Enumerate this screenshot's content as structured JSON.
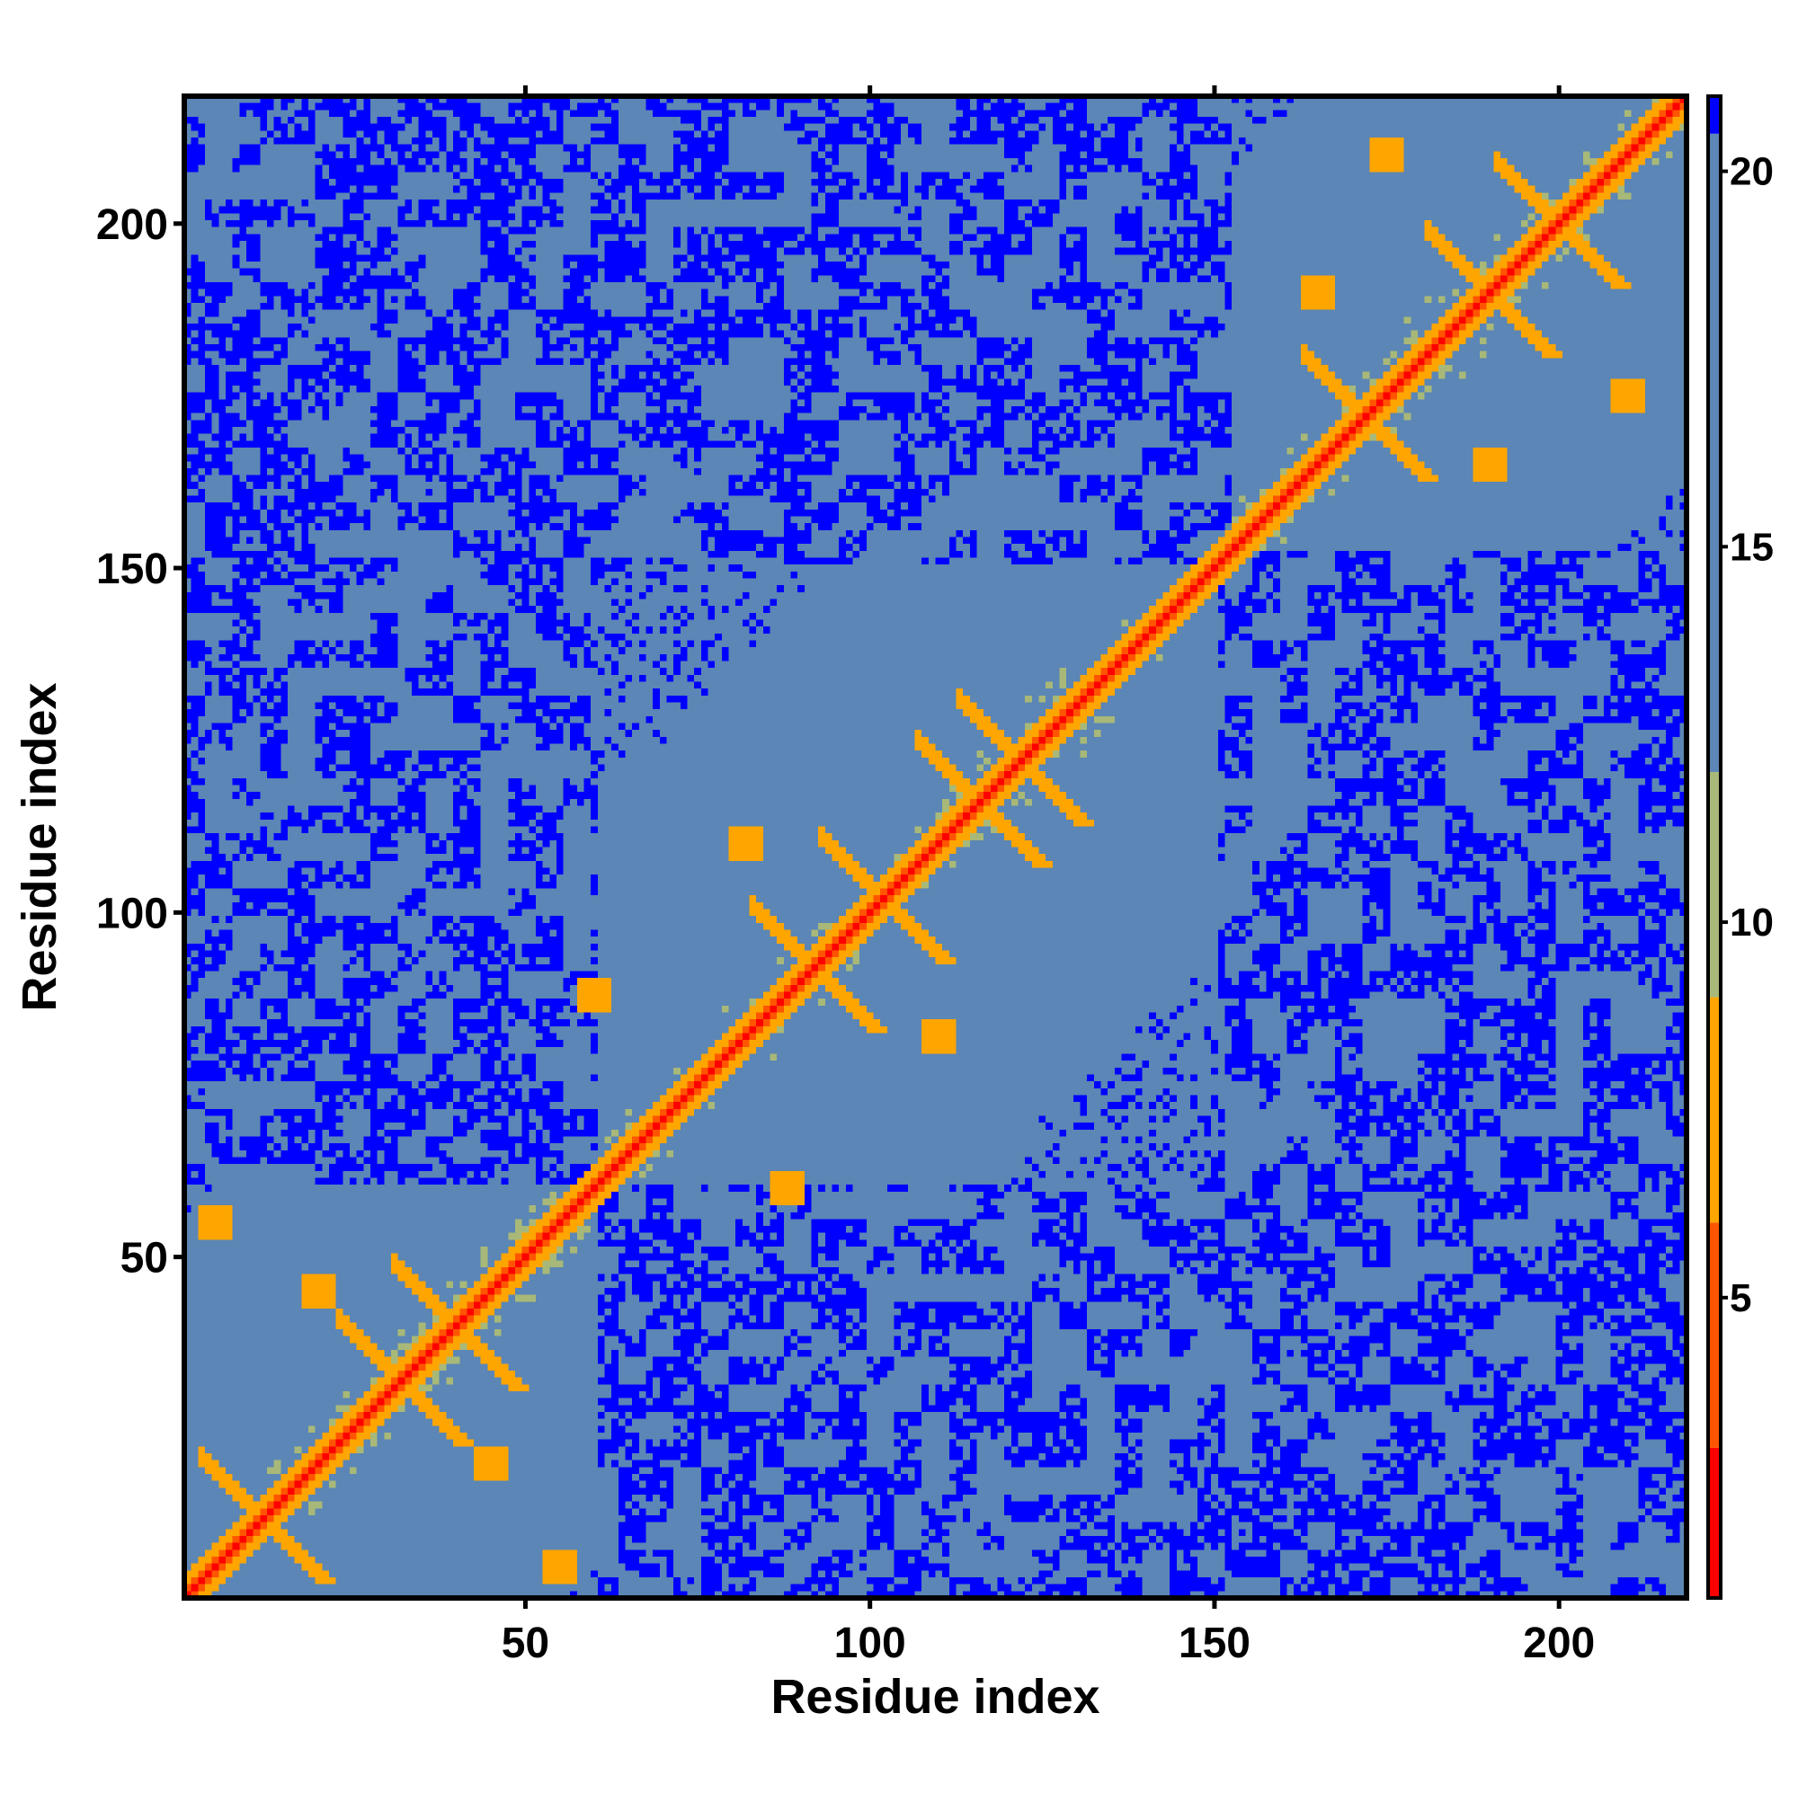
{
  "chart_data": {
    "type": "heatmap",
    "title": "",
    "xlabel": "Residue index",
    "ylabel": "Residue index",
    "xlim": [
      1,
      218
    ],
    "ylim": [
      1,
      218
    ],
    "x_ticks": [
      50,
      100,
      150,
      200
    ],
    "y_ticks": [
      50,
      100,
      150,
      200
    ],
    "x_tick_labels": [
      "50",
      "100",
      "150",
      "200"
    ],
    "y_tick_labels": [
      "50",
      "100",
      "150",
      "200"
    ],
    "colorbar": {
      "range": [
        1,
        21
      ],
      "ticks": [
        5,
        10,
        15,
        20
      ],
      "tick_labels": [
        "5",
        "10",
        "15",
        "20"
      ],
      "bins": [
        {
          "from": 1,
          "to": 3,
          "color": "#ff0000"
        },
        {
          "from": 3,
          "to": 6,
          "color": "#ff5500"
        },
        {
          "from": 6,
          "to": 9,
          "color": "#ffa500"
        },
        {
          "from": 9,
          "to": 12,
          "color": "#a8b878"
        },
        {
          "from": 12,
          "to": 20.5,
          "color": "#5b86b5"
        },
        {
          "from": 20.5,
          "to": 21,
          "color": "#0000ff"
        }
      ]
    },
    "grid": false,
    "legend": "right",
    "description_of_values": "Symmetric residue-residue distance matrix; values ~1-3 on the diagonal, 6-9 at contacts, 12-20 within domains, >20 between domains.",
    "domains": [
      [
        1,
        60
      ],
      [
        58,
        150
      ],
      [
        153,
        218
      ]
    ],
    "contact_crosses": [
      [
        12,
        12
      ],
      [
        32,
        32
      ],
      [
        40,
        40
      ],
      [
        92,
        92
      ],
      [
        102,
        102
      ],
      [
        116,
        116
      ],
      [
        122,
        122
      ],
      [
        172,
        172
      ],
      [
        190,
        190
      ],
      [
        200,
        200
      ]
    ],
    "interdomain_contacts": [
      [
        5,
        55
      ],
      [
        20,
        45
      ],
      [
        60,
        88
      ],
      [
        82,
        110
      ],
      [
        165,
        190
      ],
      [
        175,
        210
      ]
    ]
  },
  "colors": {
    "diagonal": "#ff0000",
    "contact": "#ffa500",
    "near": "#a8b878",
    "medium": "#5b86b5",
    "far": "#0000ff"
  }
}
